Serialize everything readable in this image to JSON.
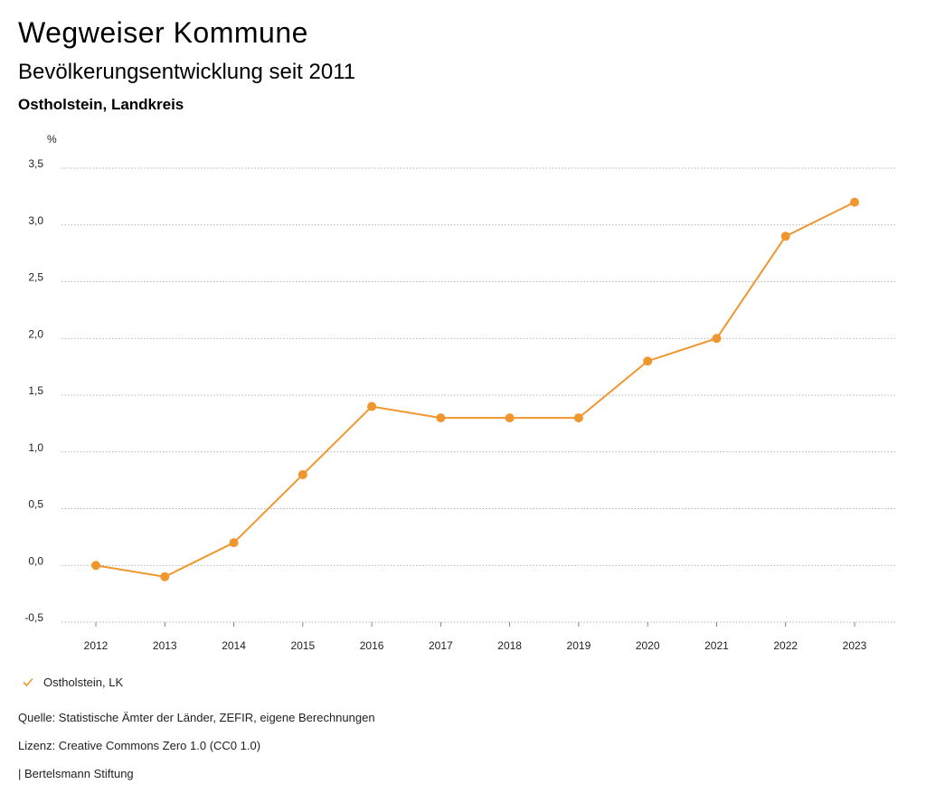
{
  "header": {
    "title": "Wegweiser Kommune",
    "subtitle": "Bevölkerungsentwicklung seit 2011",
    "region": "Ostholstein, Landkreis"
  },
  "chart_data": {
    "type": "line",
    "unit_label": "%",
    "categories": [
      "2012",
      "2013",
      "2014",
      "2015",
      "2016",
      "2017",
      "2018",
      "2019",
      "2020",
      "2021",
      "2022",
      "2023"
    ],
    "series": [
      {
        "name": "Ostholstein, LK",
        "color": "#f0962e",
        "values": [
          0.0,
          -0.1,
          0.2,
          0.8,
          1.4,
          1.3,
          1.3,
          1.3,
          1.8,
          2.0,
          2.9,
          3.2
        ]
      }
    ],
    "ylim": [
      -0.5,
      3.5
    ],
    "yticks": [
      3.5,
      3.0,
      2.5,
      2.0,
      1.5,
      1.0,
      0.5,
      0.0,
      -0.5
    ],
    "ytick_labels": [
      "3,5",
      "3,0",
      "2,5",
      "2,0",
      "1,5",
      "1,0",
      "0,5",
      "0,0",
      "-0,5"
    ],
    "grid": true,
    "legend_position": "bottom-left"
  },
  "legend": {
    "label": "Ostholstein, LK",
    "icon": "check-icon",
    "color": "#f0962e"
  },
  "footer": {
    "source": "Quelle: Statistische Ämter der Länder, ZEFIR, eigene Berechnungen",
    "license": "Lizenz: Creative Commons Zero 1.0 (CC0 1.0)",
    "credit": "| Bertelsmann Stiftung"
  }
}
